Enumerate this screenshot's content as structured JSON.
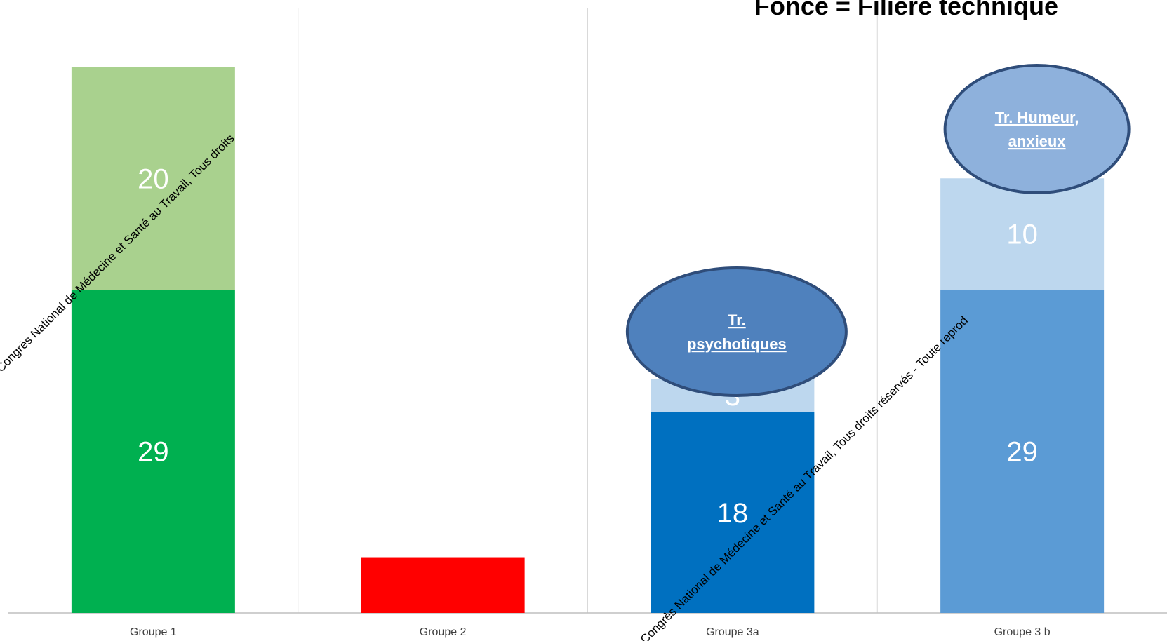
{
  "heading": "Foncé = Filière technique",
  "chart_data": {
    "type": "bar",
    "stacked": true,
    "categories": [
      "Groupe 1",
      "Groupe 2",
      "Groupe 3a",
      "Groupe 3 b"
    ],
    "ylim": [
      0,
      55
    ],
    "grid": true,
    "legend": "none",
    "series": [
      {
        "values": [
          29,
          5,
          18,
          29
        ],
        "data_labels": [
          "29",
          "",
          "18",
          "29"
        ],
        "colors": [
          "#00b050",
          "#ff0000",
          "#0070c0",
          "#5b9bd5"
        ]
      },
      {
        "values": [
          20,
          0,
          3,
          10
        ],
        "data_labels": [
          "20",
          "",
          "3",
          "10"
        ],
        "colors": [
          "#a9d18e",
          "#ff0000",
          "#bdd7ee",
          "#bdd7ee"
        ]
      }
    ],
    "annotations": [
      {
        "category": "Groupe 3a",
        "text_lines": [
          "Tr.",
          "psychotiques"
        ],
        "fill": "#4f81bd",
        "stroke": "#2f4d7a"
      },
      {
        "category": "Groupe 3 b",
        "text_lines": [
          "Tr. Humeur,",
          "anxieux"
        ],
        "fill": "#8eb1dc",
        "stroke": "#2f4d7a"
      }
    ],
    "colors": {
      "grid": "#d9d9d9",
      "axis": "#bfbfbf",
      "tick_label": "#404040",
      "data_label": "#ffffff"
    }
  },
  "watermark": {
    "texts": [
      "Congrès National de Médecine et Santé au Travail, Tous droits",
      "Congrès National de Médecine et Santé au Travail, Tous droits réservés - Toute reprod"
    ]
  }
}
